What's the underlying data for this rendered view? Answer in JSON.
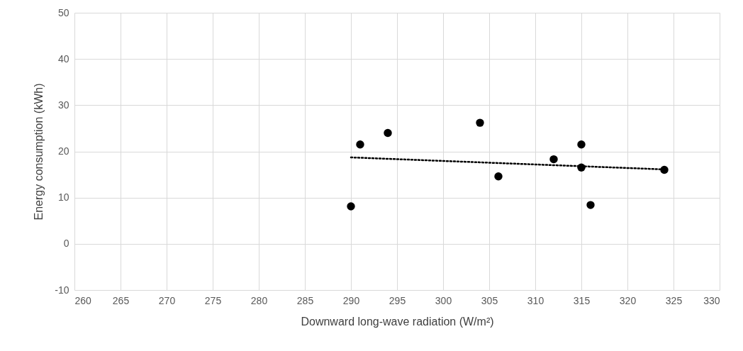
{
  "chart_data": {
    "type": "scatter",
    "xlabel": "Downward long-wave radiation (W/m²)",
    "ylabel": "Energy consumption (kWh)",
    "xlim": [
      260,
      330
    ],
    "xticks": [
      260,
      265,
      270,
      275,
      280,
      285,
      290,
      295,
      300,
      305,
      310,
      315,
      320,
      325,
      330
    ],
    "ylim": [
      -10,
      50
    ],
    "yticks": [
      -10,
      0,
      10,
      20,
      30,
      40,
      50
    ],
    "grid": true,
    "marker": "circle",
    "series": [
      {
        "type": "scatter",
        "color": "#000000",
        "x": [
          290,
          291,
          294,
          304,
          306,
          312,
          315,
          315,
          316,
          324
        ],
        "values": [
          8.1,
          21.5,
          24,
          26.2,
          14.6,
          18.3,
          21.5,
          16.5,
          8.4,
          16
        ]
      },
      {
        "type": "line",
        "color": "#000000",
        "x": [
          290,
          324
        ],
        "values": [
          18.7,
          16.1
        ],
        "line_style": "dotted",
        "marker": "none"
      }
    ]
  }
}
